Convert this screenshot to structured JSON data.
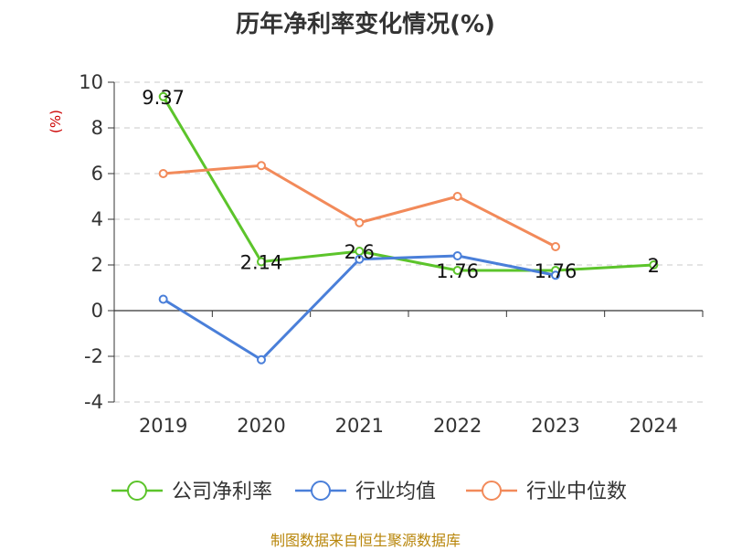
{
  "chart_data": {
    "type": "line",
    "title": "历年净利率变化情况(%)",
    "ylabel": "(%)",
    "xlabel": "",
    "categories": [
      "2019",
      "2020",
      "2021",
      "2022",
      "2023",
      "2024"
    ],
    "ylim": [
      -4,
      10
    ],
    "yticks": [
      -4,
      -2,
      0,
      2,
      4,
      6,
      8,
      10
    ],
    "yticks_text": [
      "-4",
      "-2",
      "0",
      "2",
      "4",
      "6",
      "8",
      "10"
    ],
    "grid": true,
    "legend_position": "bottom",
    "series": [
      {
        "name": "公司净利率",
        "color": "#5cc42b",
        "values": [
          9.37,
          2.14,
          2.6,
          1.76,
          1.76,
          2
        ],
        "labels": [
          "9.37",
          "2.14",
          "2.6",
          "1.76",
          "1.76",
          "2"
        ]
      },
      {
        "name": "行业均值",
        "color": "#4a7fd9",
        "values": [
          0.5,
          -2.15,
          2.25,
          2.4,
          1.55,
          null
        ]
      },
      {
        "name": "行业中位数",
        "color": "#f28a5a",
        "values": [
          6.0,
          6.35,
          3.85,
          5.0,
          2.8,
          null
        ]
      }
    ]
  },
  "source": "制图数据来自恒生聚源数据库"
}
